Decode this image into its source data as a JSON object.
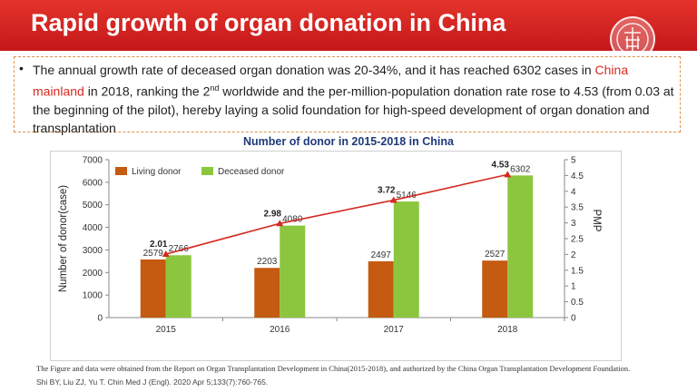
{
  "slide": {
    "title": "Rapid growth of organ donation in China",
    "bullet": "•",
    "text_part1": "The annual growth rate of deceased organ donation was 20-34%, and it has reached 6302 cases in ",
    "text_highlight": "China mainland",
    "text_part2": " in 2018, ranking the 2",
    "text_sup": "nd",
    "text_part3": "  worldwide  and  the per-million-population donation rate rose to 4.53 (from 0.03 at the beginning of the pilot),   hereby laying a solid foundation for high-speed development of organ donation and transplantation",
    "source_note": "The Figure and data were obtained from the Report on Organ Transplantation Development in China(2015-2018), and authorized by the China Organ Transplantation Development Foundation.",
    "citation": "Shi BY, Liu ZJ, Yu T. Chin Med J (Engl). 2020 Apr 5;133(7):760-765."
  },
  "colors": {
    "banner": "#d42a20",
    "living": "#c55a11",
    "deceased": "#8cc63f",
    "pmp_line": "#d42a20",
    "title_blue": "#1f3a7a"
  },
  "chart_data": {
    "type": "bar",
    "title": "Number of donor in 2015-2018 in China",
    "categories": [
      "2015",
      "2016",
      "2017",
      "2018"
    ],
    "series": [
      {
        "name": "Living donor",
        "values": [
          2579,
          2203,
          2497,
          2527
        ],
        "value_labels": [
          "2579",
          "2203",
          "2497",
          "2527"
        ]
      },
      {
        "name": "Deceased donor",
        "values": [
          2766,
          4080,
          5146,
          6302
        ],
        "value_labels": [
          "2766",
          "4080",
          "5146",
          "6302"
        ]
      }
    ],
    "line_series": {
      "values": [
        2.01,
        2.98,
        3.72,
        4.53
      ],
      "value_labels": [
        "2.01",
        "2.98",
        "3.72",
        "4.53"
      ],
      "axis": "right"
    },
    "ylabel": "Number of donor(case)",
    "y2label": "PMP",
    "ylim": [
      0,
      7000
    ],
    "y2lim": [
      0,
      5
    ],
    "yticks": [
      "0",
      "1000",
      "2000",
      "3000",
      "4000",
      "5000",
      "6000",
      "7000"
    ],
    "y2ticks": [
      "0",
      "0.5",
      "1",
      "1.5",
      "2",
      "2.5",
      "3",
      "3.5",
      "4",
      "4.5",
      "5"
    ],
    "grid": false,
    "legend_position": "top-left"
  }
}
